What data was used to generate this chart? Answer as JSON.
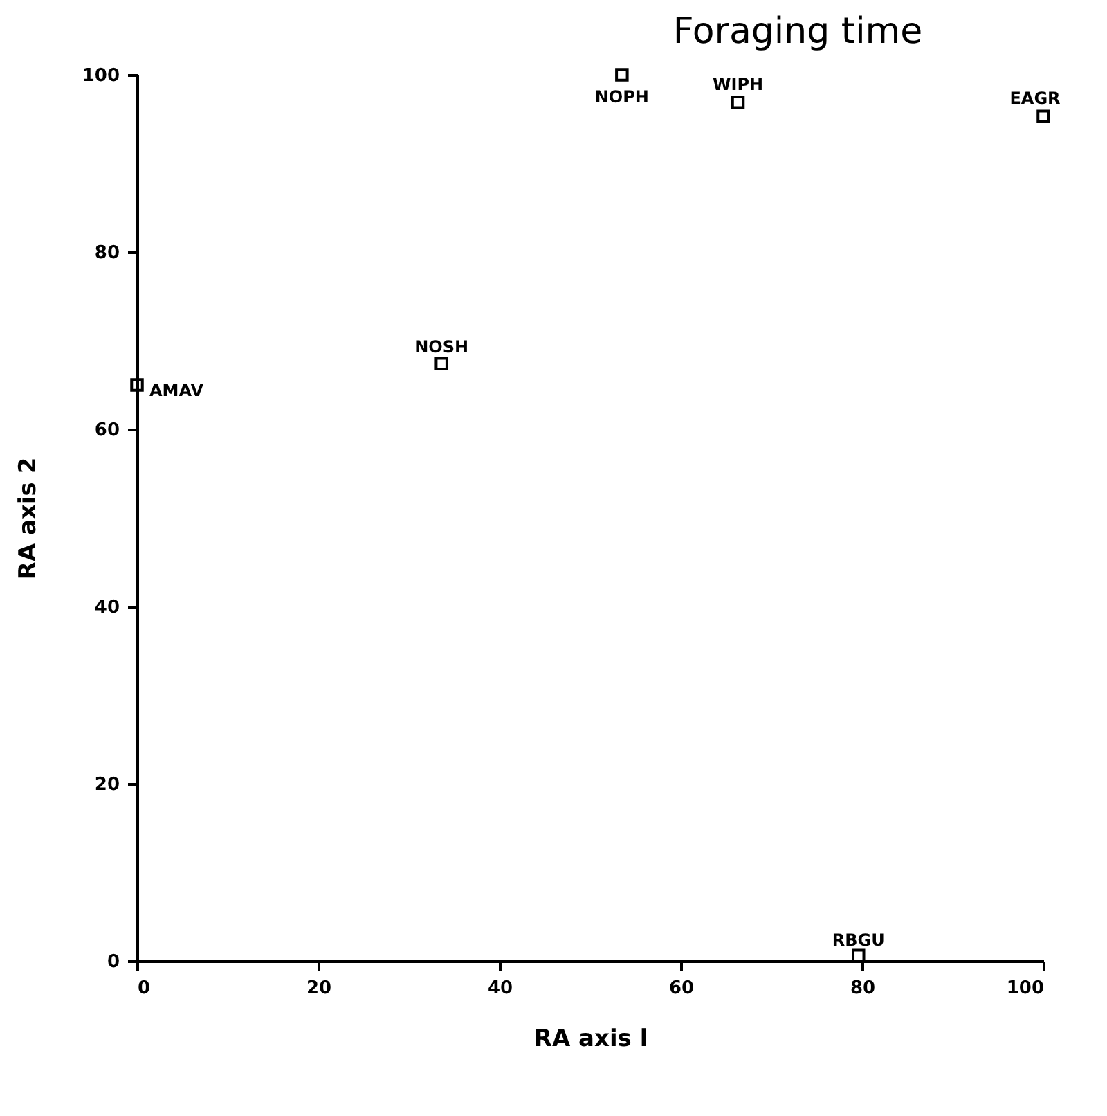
{
  "chart_data": {
    "type": "scatter",
    "title": "Foraging time",
    "xlabel": "RA axis l",
    "ylabel": "RA axis 2",
    "xlim": [
      0,
      100
    ],
    "ylim": [
      0,
      100
    ],
    "xticks": [
      0,
      20,
      40,
      60,
      80,
      100
    ],
    "yticks": [
      0,
      20,
      40,
      60,
      80,
      100
    ],
    "grid": false,
    "marker": "square",
    "series": [
      {
        "name": "AMAV",
        "color": "#000000",
        "x": [
          0
        ],
        "values": [
          65
        ]
      },
      {
        "name": "NOSH",
        "color": "#000000",
        "x": [
          33.6
        ],
        "values": [
          67.4
        ]
      },
      {
        "name": "NOPH",
        "color": "#000000",
        "x": [
          53.5
        ],
        "values": [
          100
        ]
      },
      {
        "name": "WIPH",
        "color": "#000000",
        "x": [
          66.3
        ],
        "values": [
          96.9
        ]
      },
      {
        "name": "EAGR",
        "color": "#000000",
        "x": [
          100
        ],
        "values": [
          95.3
        ]
      },
      {
        "name": "RBGU",
        "color": "#000000",
        "x": [
          79.6
        ],
        "values": [
          0.6
        ]
      }
    ]
  }
}
